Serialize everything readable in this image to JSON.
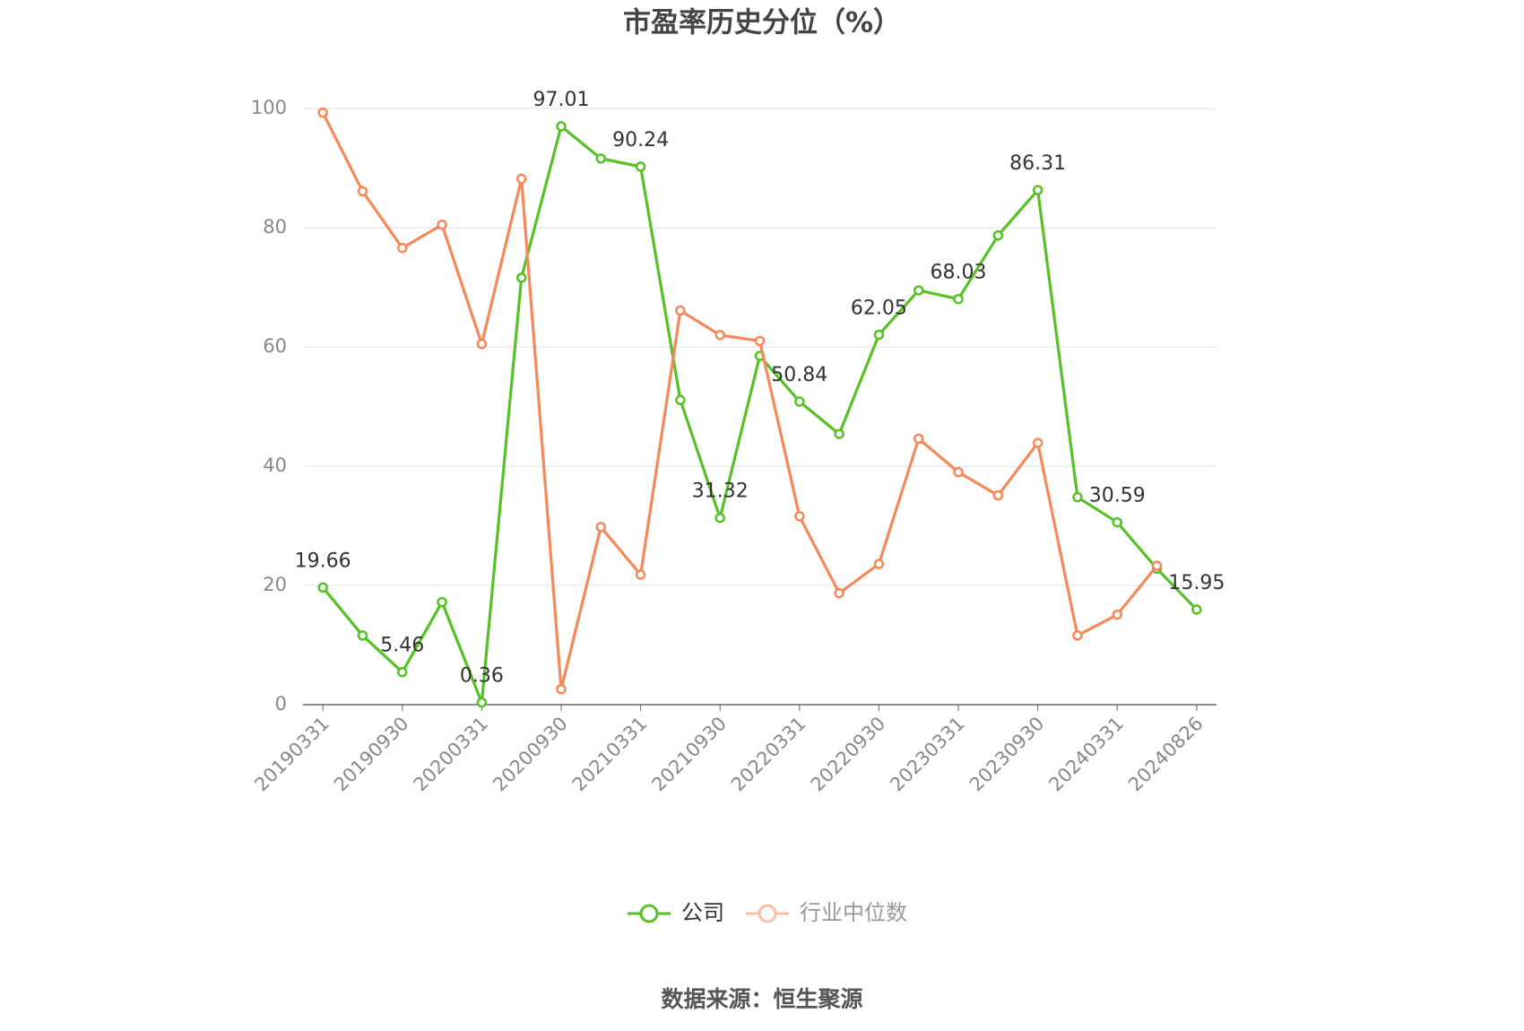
{
  "chart_data": {
    "type": "line",
    "title": "市盈率历史分位（%）",
    "source": "数据来源：恒生聚源",
    "categories": [
      "20190331",
      null,
      "20190930",
      null,
      "20200331",
      null,
      "20200930",
      null,
      "20210331",
      null,
      "20210930",
      null,
      "20220331",
      null,
      "20220930",
      null,
      "20230331",
      null,
      "20230930",
      null,
      "20240331",
      null,
      "20240826"
    ],
    "series": [
      {
        "name": "公司",
        "color": "#57c127",
        "values": [
          19.66,
          11.6,
          5.46,
          17.2,
          0.36,
          71.6,
          97.01,
          91.6,
          90.24,
          51.1,
          31.32,
          58.5,
          50.84,
          45.4,
          62.05,
          69.5,
          68.03,
          78.7,
          86.31,
          34.8,
          30.59,
          22.8,
          15.95
        ]
      },
      {
        "name": "行业中位数",
        "color": "#f4895a",
        "values": [
          99.3,
          86.1,
          76.6,
          80.5,
          60.5,
          88.2,
          2.6,
          29.8,
          21.8,
          66.1,
          62.0,
          61.0,
          31.6,
          18.7,
          23.6,
          44.6,
          39.0,
          35.1,
          43.9,
          11.6,
          15.1,
          23.3,
          null
        ]
      }
    ],
    "ylim": [
      0,
      100
    ],
    "yticks": [
      0,
      20,
      40,
      60,
      80,
      100
    ],
    "grid": true
  }
}
